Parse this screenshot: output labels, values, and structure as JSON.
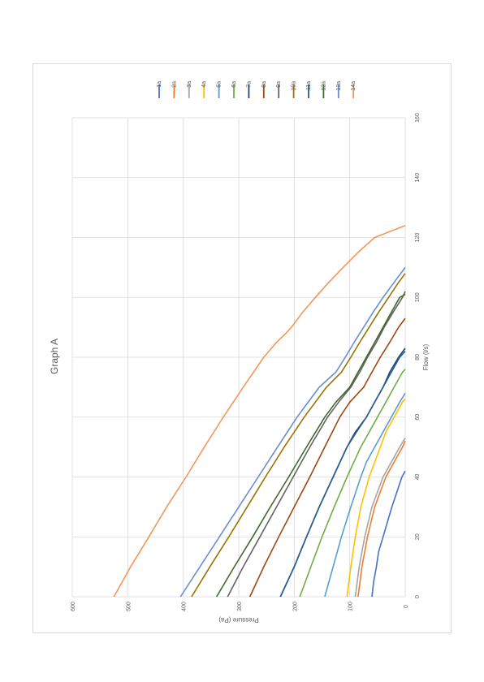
{
  "chart_data": {
    "type": "line",
    "title": "Graph A",
    "xlabel": "Flow (l/s)",
    "ylabel": "Pressure (Pa)",
    "xlim": [
      0,
      160
    ],
    "ylim": [
      0,
      600
    ],
    "x_ticks": [
      "0",
      "20",
      "40",
      "60",
      "80",
      "100",
      "120",
      "140",
      "160"
    ],
    "y_ticks": [
      "0",
      "100",
      "200",
      "300",
      "400",
      "500",
      "600"
    ],
    "grid": true,
    "legend_position": "top",
    "orientation": "rotated-90-clockwise",
    "series": [
      {
        "name": "1a",
        "color": "#4472C4",
        "points": [
          [
            0,
            60
          ],
          [
            5,
            57
          ],
          [
            10,
            52
          ],
          [
            15,
            48
          ],
          [
            20,
            40
          ],
          [
            25,
            32
          ],
          [
            30,
            24
          ],
          [
            35,
            15
          ],
          [
            40,
            6
          ],
          [
            42,
            0
          ]
        ]
      },
      {
        "name": "2a",
        "color": "#ED7D31",
        "points": [
          [
            0,
            85
          ],
          [
            10,
            78
          ],
          [
            20,
            68
          ],
          [
            30,
            55
          ],
          [
            40,
            35
          ],
          [
            45,
            20
          ],
          [
            50,
            5
          ],
          [
            52,
            0
          ]
        ]
      },
      {
        "name": "3a",
        "color": "#A5A5A5",
        "points": [
          [
            0,
            90
          ],
          [
            10,
            83
          ],
          [
            20,
            73
          ],
          [
            30,
            60
          ],
          [
            40,
            40
          ],
          [
            45,
            25
          ],
          [
            50,
            10
          ],
          [
            53,
            0
          ]
        ]
      },
      {
        "name": "4a",
        "color": "#FFC000",
        "points": [
          [
            0,
            105
          ],
          [
            10,
            98
          ],
          [
            20,
            90
          ],
          [
            30,
            80
          ],
          [
            40,
            65
          ],
          [
            50,
            45
          ],
          [
            55,
            35
          ],
          [
            60,
            20
          ],
          [
            65,
            5
          ],
          [
            66,
            0
          ]
        ]
      },
      {
        "name": "5a",
        "color": "#5B9BD5",
        "points": [
          [
            0,
            145
          ],
          [
            10,
            130
          ],
          [
            20,
            115
          ],
          [
            30,
            98
          ],
          [
            40,
            80
          ],
          [
            45,
            70
          ],
          [
            50,
            55
          ],
          [
            55,
            40
          ],
          [
            60,
            25
          ],
          [
            65,
            10
          ],
          [
            68,
            0
          ]
        ]
      },
      {
        "name": "6a",
        "color": "#70AD47",
        "points": [
          [
            0,
            190
          ],
          [
            10,
            170
          ],
          [
            20,
            150
          ],
          [
            30,
            128
          ],
          [
            40,
            105
          ],
          [
            50,
            80
          ],
          [
            55,
            65
          ],
          [
            60,
            50
          ],
          [
            65,
            35
          ],
          [
            70,
            20
          ],
          [
            75,
            5
          ],
          [
            76,
            0
          ]
        ]
      },
      {
        "name": "7a",
        "color": "#264478",
        "points": [
          [
            0,
            225
          ],
          [
            10,
            200
          ],
          [
            20,
            178
          ],
          [
            30,
            155
          ],
          [
            40,
            130
          ],
          [
            50,
            105
          ],
          [
            55,
            90
          ],
          [
            60,
            70
          ],
          [
            65,
            55
          ],
          [
            70,
            40
          ],
          [
            75,
            28
          ],
          [
            80,
            12
          ],
          [
            83,
            0
          ]
        ]
      },
      {
        "name": "8a",
        "color": "#9E480E",
        "points": [
          [
            0,
            280
          ],
          [
            10,
            255
          ],
          [
            20,
            228
          ],
          [
            30,
            200
          ],
          [
            40,
            172
          ],
          [
            50,
            145
          ],
          [
            60,
            118
          ],
          [
            65,
            100
          ],
          [
            70,
            75
          ],
          [
            75,
            60
          ],
          [
            80,
            45
          ],
          [
            85,
            28
          ],
          [
            90,
            12
          ],
          [
            93,
            0
          ]
        ]
      },
      {
        "name": "9a",
        "color": "#636363",
        "points": [
          [
            0,
            320
          ],
          [
            10,
            292
          ],
          [
            20,
            262
          ],
          [
            30,
            232
          ],
          [
            40,
            202
          ],
          [
            50,
            172
          ],
          [
            60,
            140
          ],
          [
            65,
            120
          ],
          [
            70,
            98
          ],
          [
            75,
            82
          ],
          [
            80,
            68
          ],
          [
            85,
            52
          ],
          [
            90,
            38
          ],
          [
            95,
            22
          ],
          [
            100,
            5
          ],
          [
            102,
            0
          ]
        ]
      },
      {
        "name": "10a",
        "color": "#997300",
        "points": [
          [
            0,
            385
          ],
          [
            10,
            352
          ],
          [
            20,
            318
          ],
          [
            30,
            285
          ],
          [
            40,
            252
          ],
          [
            50,
            218
          ],
          [
            60,
            182
          ],
          [
            70,
            142
          ],
          [
            75,
            115
          ],
          [
            80,
            98
          ],
          [
            85,
            82
          ],
          [
            90,
            65
          ],
          [
            95,
            48
          ],
          [
            100,
            30
          ],
          [
            105,
            12
          ],
          [
            108,
            0
          ]
        ]
      },
      {
        "name": "11a",
        "color": "#255E91",
        "points": [
          [
            0,
            225
          ],
          [
            10,
            200
          ],
          [
            20,
            178
          ],
          [
            30,
            155
          ],
          [
            40,
            130
          ],
          [
            50,
            105
          ],
          [
            55,
            88
          ],
          [
            60,
            70
          ],
          [
            65,
            55
          ],
          [
            70,
            40
          ],
          [
            75,
            25
          ],
          [
            80,
            10
          ],
          [
            82,
            0
          ]
        ]
      },
      {
        "name": "12a",
        "color": "#43682B",
        "points": [
          [
            0,
            340
          ],
          [
            10,
            308
          ],
          [
            20,
            275
          ],
          [
            30,
            243
          ],
          [
            40,
            210
          ],
          [
            50,
            178
          ],
          [
            60,
            145
          ],
          [
            65,
            125
          ],
          [
            70,
            100
          ],
          [
            75,
            85
          ],
          [
            80,
            70
          ],
          [
            85,
            55
          ],
          [
            90,
            40
          ],
          [
            95,
            25
          ],
          [
            100,
            10
          ],
          [
            101,
            0
          ]
        ]
      },
      {
        "name": "13a",
        "color": "#698ED0",
        "points": [
          [
            0,
            405
          ],
          [
            10,
            370
          ],
          [
            20,
            335
          ],
          [
            30,
            300
          ],
          [
            40,
            265
          ],
          [
            50,
            230
          ],
          [
            60,
            195
          ],
          [
            70,
            155
          ],
          [
            75,
            125
          ],
          [
            80,
            108
          ],
          [
            85,
            92
          ],
          [
            90,
            75
          ],
          [
            95,
            58
          ],
          [
            100,
            40
          ],
          [
            105,
            20
          ],
          [
            110,
            0
          ]
        ]
      },
      {
        "name": "14a",
        "color": "#F1975A",
        "points": [
          [
            0,
            525
          ],
          [
            10,
            495
          ],
          [
            20,
            462
          ],
          [
            30,
            430
          ],
          [
            40,
            395
          ],
          [
            50,
            362
          ],
          [
            60,
            328
          ],
          [
            70,
            292
          ],
          [
            80,
            255
          ],
          [
            85,
            232
          ],
          [
            88,
            215
          ],
          [
            90,
            205
          ],
          [
            95,
            185
          ],
          [
            100,
            162
          ],
          [
            105,
            138
          ],
          [
            110,
            112
          ],
          [
            115,
            85
          ],
          [
            120,
            55
          ],
          [
            124,
            0
          ]
        ]
      }
    ]
  }
}
